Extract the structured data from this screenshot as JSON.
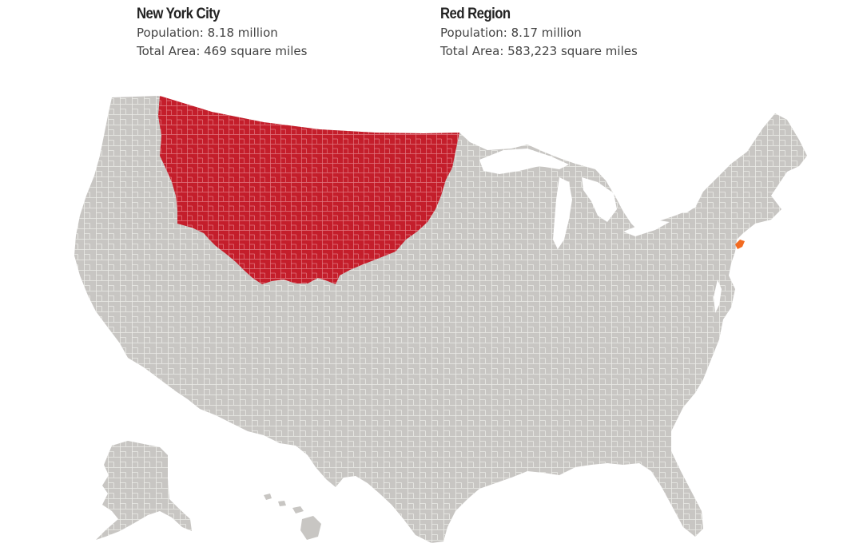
{
  "legend": {
    "nyc": {
      "title": "New York City",
      "population": "Population: 8.18 million",
      "area": "Total Area: 469 square miles"
    },
    "red_region": {
      "title": "Red Region",
      "population": "Population: 8.17 million",
      "area": "Total Area: 583,223 square miles"
    }
  },
  "colors": {
    "land": "#c8c6c3",
    "county_border": "#ecebe8",
    "red_region": "#c41e2b",
    "nyc": "#f26b21"
  }
}
